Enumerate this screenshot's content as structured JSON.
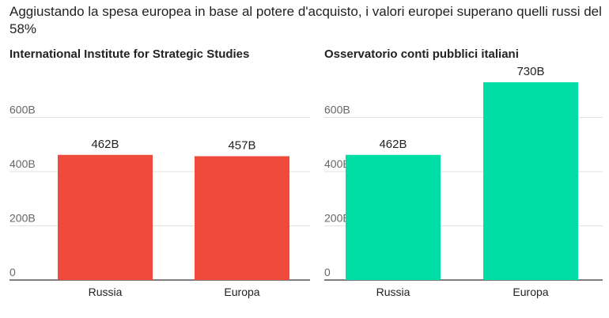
{
  "title": "Aggiustando la spesa europea in base al potere d'acquisto, i valori europei superano quelli russi del 58%",
  "chart_data": [
    {
      "type": "bar",
      "title": "International Institute for Strategic Studies",
      "categories": [
        "Russia",
        "Europa"
      ],
      "values": [
        462,
        457
      ],
      "value_labels": [
        "462B",
        "457B"
      ],
      "color": "#ef4a3c",
      "ylim": [
        0,
        800
      ],
      "yticks": [
        0,
        200,
        400,
        600
      ],
      "ytick_labels": [
        "0",
        "200B",
        "400B",
        "600B"
      ],
      "grid": true
    },
    {
      "type": "bar",
      "title": "Osservatorio conti pubblici italiani",
      "categories": [
        "Russia",
        "Europa"
      ],
      "values": [
        462,
        730
      ],
      "value_labels": [
        "462B",
        "730B"
      ],
      "color": "#00dea6",
      "ylim": [
        0,
        800
      ],
      "yticks": [
        0,
        200,
        400,
        600
      ],
      "ytick_labels": [
        "0",
        "200B",
        "400B",
        "600B"
      ],
      "grid": true
    }
  ]
}
